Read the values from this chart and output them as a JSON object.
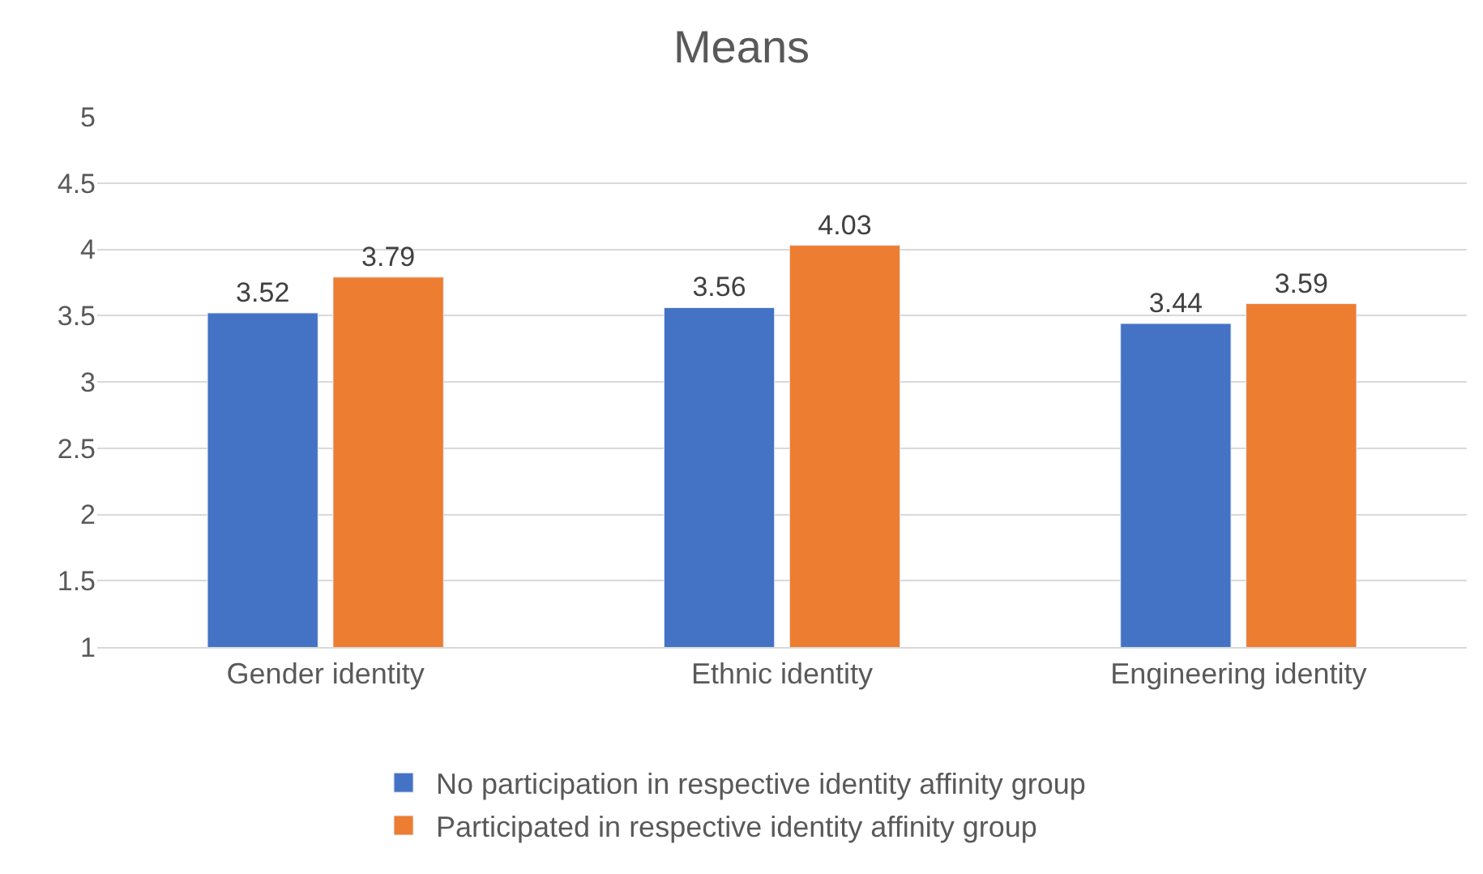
{
  "chart_data": {
    "type": "bar",
    "title": "Means",
    "categories": [
      "Gender identity",
      "Ethnic identity",
      "Engineering identity"
    ],
    "series": [
      {
        "name": "No participation in respective identity affinity group",
        "color": "#4472c4",
        "values": [
          3.52,
          3.56,
          3.44
        ]
      },
      {
        "name": "Participated in respective identity affinity group",
        "color": "#ed7d31",
        "values": [
          3.79,
          4.03,
          3.59
        ]
      }
    ],
    "ylim": [
      1,
      5
    ],
    "yticks": [
      1,
      1.5,
      2,
      2.5,
      3,
      3.5,
      4,
      4.5,
      5
    ],
    "grid": "y",
    "legend": "bottom",
    "data_labels": true
  }
}
